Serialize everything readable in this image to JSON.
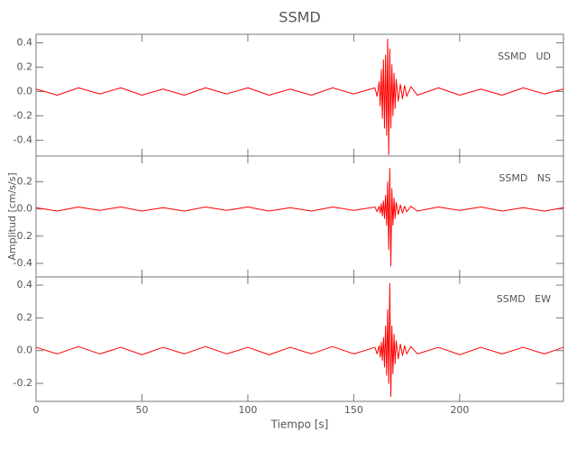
{
  "chart_data": [
    {
      "type": "line",
      "title": "SSMD",
      "x": [
        0,
        10,
        20,
        30,
        40,
        50,
        60,
        70,
        80,
        90,
        100,
        110,
        120,
        130,
        140,
        150,
        160,
        161,
        162,
        162.5,
        163,
        163.5,
        164,
        164.5,
        165,
        165.5,
        166,
        166.5,
        167,
        167.5,
        168,
        168.5,
        169,
        169.5,
        170,
        171,
        172,
        173,
        174,
        175,
        177,
        180,
        190,
        200,
        210,
        220,
        230,
        240,
        249
      ],
      "series": [
        {
          "name": "SSMD   UD",
          "color": "#ff0000",
          "values": [
            0.02,
            -0.03,
            0.03,
            -0.02,
            0.03,
            -0.03,
            0.02,
            -0.03,
            0.03,
            -0.02,
            0.03,
            -0.03,
            0.02,
            -0.03,
            0.03,
            -0.02,
            0.03,
            -0.04,
            0.08,
            -0.12,
            0.18,
            -0.22,
            0.26,
            -0.3,
            0.3,
            -0.36,
            0.43,
            -0.52,
            0.35,
            -0.3,
            0.22,
            -0.2,
            0.15,
            -0.14,
            0.1,
            -0.08,
            0.06,
            -0.06,
            0.05,
            -0.04,
            0.04,
            -0.03,
            0.03,
            -0.03,
            0.02,
            -0.03,
            0.03,
            -0.02,
            0.02
          ]
        }
      ],
      "ylim": [
        -0.53,
        0.47
      ],
      "yticks": [
        0.4,
        0.2,
        {
          "value": 0,
          "label": "0.0"
        },
        -0.2,
        -0.4
      ]
    },
    {
      "type": "line",
      "y_label": "Amplitud [cm/s/s]",
      "x": [
        0,
        10,
        20,
        30,
        40,
        50,
        60,
        70,
        80,
        90,
        100,
        110,
        120,
        130,
        140,
        150,
        160,
        161,
        162,
        162.5,
        163,
        163.5,
        164,
        164.5,
        165,
        165.5,
        166,
        166.5,
        167,
        167.5,
        168,
        168.5,
        169,
        169.5,
        170,
        171,
        172,
        173,
        174,
        175,
        177,
        180,
        190,
        200,
        210,
        220,
        230,
        240,
        249
      ],
      "series": [
        {
          "name": "SSMD   NS",
          "color": "#ff0000",
          "values": [
            0.01,
            -0.015,
            0.015,
            -0.01,
            0.015,
            -0.015,
            0.01,
            -0.015,
            0.015,
            -0.01,
            0.015,
            -0.015,
            0.01,
            -0.015,
            0.015,
            -0.01,
            0.015,
            -0.02,
            0.02,
            -0.03,
            0.04,
            -0.05,
            0.06,
            -0.07,
            0.1,
            -0.12,
            0.2,
            -0.3,
            0.3,
            -0.42,
            0.15,
            -0.12,
            0.08,
            -0.07,
            0.05,
            -0.04,
            0.03,
            -0.03,
            0.02,
            -0.02,
            0.02,
            -0.015,
            0.015,
            -0.01,
            0.015,
            -0.015,
            0.01,
            -0.015,
            0.01
          ]
        }
      ],
      "ylim": [
        -0.5,
        0.39
      ],
      "yticks": [
        0.2,
        {
          "value": 0,
          "label": "0.0"
        },
        -0.2,
        -0.4
      ]
    },
    {
      "type": "line",
      "x_label": "Tiempo [s]",
      "x": [
        0,
        10,
        20,
        30,
        40,
        50,
        60,
        70,
        80,
        90,
        100,
        110,
        120,
        130,
        140,
        150,
        160,
        161,
        162,
        162.5,
        163,
        163.5,
        164,
        164.5,
        165,
        165.5,
        166,
        166.5,
        167,
        167.5,
        168,
        168.5,
        169,
        169.5,
        170,
        171,
        172,
        173,
        174,
        175,
        177,
        180,
        190,
        200,
        210,
        220,
        230,
        240,
        249
      ],
      "series": [
        {
          "name": "SSMD   EW",
          "color": "#ff0000",
          "values": [
            0.02,
            -0.02,
            0.025,
            -0.02,
            0.02,
            -0.025,
            0.02,
            -0.02,
            0.025,
            -0.02,
            0.02,
            -0.025,
            0.02,
            -0.02,
            0.025,
            -0.02,
            0.02,
            -0.02,
            0.03,
            -0.04,
            0.05,
            -0.06,
            0.08,
            -0.1,
            0.15,
            -0.15,
            0.25,
            -0.2,
            0.41,
            -0.28,
            0.15,
            -0.14,
            0.1,
            -0.08,
            0.06,
            -0.05,
            0.04,
            -0.03,
            0.03,
            -0.02,
            0.025,
            -0.02,
            0.02,
            -0.025,
            0.02,
            -0.02,
            0.02,
            -0.02,
            0.02
          ]
        }
      ],
      "ylim": [
        -0.31,
        0.45
      ],
      "yticks": [
        0.4,
        0.2,
        {
          "value": 0,
          "label": "0.0"
        },
        -0.2
      ],
      "xlim": [
        0,
        249
      ],
      "xticks": [
        0,
        50,
        100,
        150,
        200
      ]
    }
  ]
}
